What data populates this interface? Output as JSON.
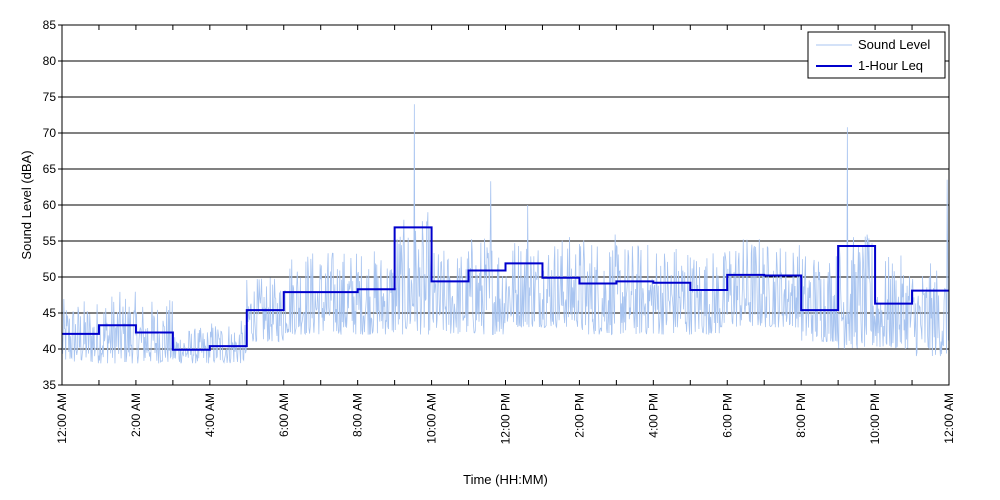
{
  "chart_data": {
    "type": "line",
    "title": "",
    "xlabel": "Time (HH:MM)",
    "ylabel": "Sound Level (dBA)",
    "xlim": [
      0,
      24
    ],
    "ylim": [
      35,
      85
    ],
    "y_ticks": [
      35,
      40,
      45,
      50,
      55,
      60,
      65,
      70,
      75,
      80,
      85
    ],
    "x_ticks": [
      {
        "hour": 0,
        "label": "12:00 AM"
      },
      {
        "hour": 2,
        "label": "2:00 AM"
      },
      {
        "hour": 4,
        "label": "4:00 AM"
      },
      {
        "hour": 6,
        "label": "6:00 AM"
      },
      {
        "hour": 8,
        "label": "8:00 AM"
      },
      {
        "hour": 10,
        "label": "10:00 AM"
      },
      {
        "hour": 12,
        "label": "12:00 PM"
      },
      {
        "hour": 14,
        "label": "2:00 PM"
      },
      {
        "hour": 16,
        "label": "4:00 PM"
      },
      {
        "hour": 18,
        "label": "6:00 PM"
      },
      {
        "hour": 20,
        "label": "8:00 PM"
      },
      {
        "hour": 22,
        "label": "10:00 PM"
      },
      {
        "hour": 24,
        "label": "12:00 AM"
      }
    ],
    "grid": "horizontal",
    "legend_position": "top-right",
    "series": [
      {
        "name": "Sound Level",
        "color": "#a8c4f0",
        "hour_start": [
          0,
          1,
          2,
          3,
          4,
          5,
          6,
          7,
          8,
          9,
          10,
          11,
          12,
          13,
          14,
          15,
          16,
          17,
          18,
          19,
          20,
          21,
          22,
          23
        ],
        "typical_min": [
          38,
          38,
          38,
          38,
          38,
          41,
          42,
          42,
          42,
          42,
          42,
          42,
          43,
          43,
          42,
          42,
          42,
          42,
          43,
          43,
          41,
          40,
          40,
          39
        ],
        "typical_max": [
          47,
          48,
          47,
          43,
          44,
          50,
          54,
          54,
          54,
          58,
          54,
          56,
          56,
          56,
          56,
          55,
          55,
          54,
          56,
          55,
          54,
          56,
          53,
          52
        ],
        "peaks": [
          {
            "hour": 9.53,
            "value": 74
          },
          {
            "hour": 11.6,
            "value": 63.3
          },
          {
            "hour": 21.25,
            "value": 70.8
          },
          {
            "hour": 23.95,
            "value": 63.5
          },
          {
            "hour": 12.6,
            "value": 60
          },
          {
            "hour": 9.9,
            "value": 59
          }
        ]
      },
      {
        "name": "1-Hour Leq",
        "color": "#0000cc",
        "hour_start": [
          0,
          1,
          2,
          3,
          4,
          5,
          6,
          7,
          8,
          9,
          10,
          11,
          12,
          13,
          14,
          15,
          16,
          17,
          18,
          19,
          20,
          21,
          22,
          23
        ],
        "values": [
          42.1,
          43.3,
          42.3,
          39.9,
          40.4,
          45.4,
          47.9,
          47.9,
          48.3,
          56.9,
          49.4,
          50.9,
          51.9,
          49.9,
          49.1,
          49.4,
          49.2,
          48.2,
          50.3,
          50.2,
          45.4,
          54.3,
          46.3,
          48.1
        ]
      }
    ]
  }
}
